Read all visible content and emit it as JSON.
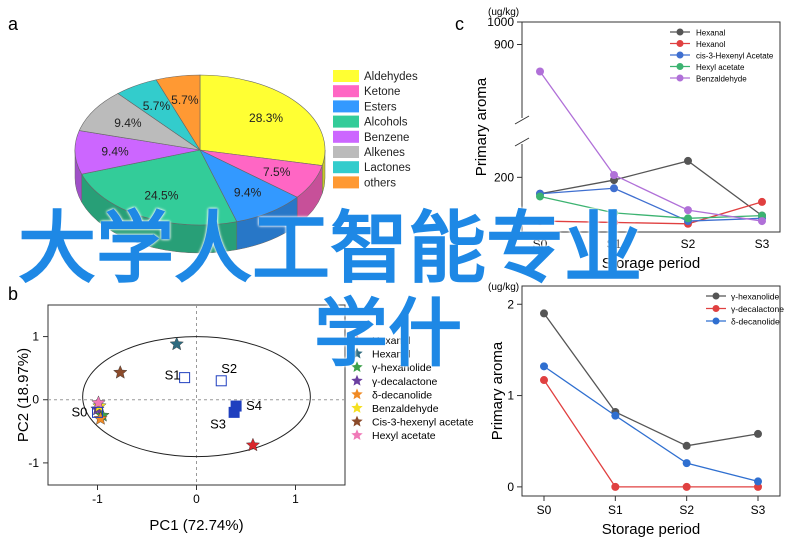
{
  "overlay": {
    "line1": "大学人工智能专业",
    "line2": "学什"
  },
  "chart_data": [
    {
      "panel": "a",
      "type": "pie",
      "title": "",
      "labels": [
        "Aldehydes",
        "Ketone",
        "Esters",
        "Alcohols",
        "Benzene",
        "Alkenes",
        "Lactones",
        "others"
      ],
      "values": [
        28.3,
        7.5,
        9.4,
        24.5,
        9.4,
        9.4,
        5.7,
        5.7
      ],
      "slice_labels": [
        "28.3%",
        "7.5%",
        "9.4%",
        "24.5%",
        "9.4%",
        "9.4%",
        "5.7%",
        "5.7%"
      ],
      "legend": "right",
      "colors": [
        "#ffff33",
        "#ff66c4",
        "#3399ff",
        "#33cc99",
        "#cc66ff",
        "#bbbbbb",
        "#33cccc",
        "#ff9933"
      ]
    },
    {
      "panel": "b",
      "type": "scatter",
      "xlabel": "PC1 (72.74%)",
      "ylabel": "PC2 (18.97%)",
      "xlim": [
        -1.5,
        1.5
      ],
      "ylim": [
        -1.35,
        1.5
      ],
      "xticks": [
        "-1",
        "0",
        "1"
      ],
      "yticks": [
        "1",
        "0",
        "-1"
      ],
      "legend": "right",
      "samples": [
        {
          "label": "S0",
          "x": -1.0,
          "y": -0.2
        },
        {
          "label": "S1",
          "x": -0.12,
          "y": 0.35
        },
        {
          "label": "S2",
          "x": 0.25,
          "y": 0.3
        },
        {
          "label": "S3",
          "x": 0.38,
          "y": -0.2
        },
        {
          "label": "S4",
          "x": 0.4,
          "y": -0.1
        }
      ],
      "loadings": [
        {
          "name": "Hexanal",
          "x": -0.2,
          "y": 0.88,
          "color": "#2e6b7f"
        },
        {
          "name": "γ-hexanolide",
          "x": -0.95,
          "y": -0.25,
          "color": "#3ca04a"
        },
        {
          "name": "γ-decalactone",
          "x": -1.0,
          "y": -0.15,
          "color": "#6b3fa0"
        },
        {
          "name": "δ-decanolide",
          "x": -0.97,
          "y": -0.3,
          "color": "#f08a24"
        },
        {
          "name": "Benzaldehyde",
          "x": -0.98,
          "y": -0.1,
          "color": "#f5e020"
        },
        {
          "name": "Cis-3-hexenyl acetate",
          "x": -0.77,
          "y": 0.43,
          "color": "#8b4a2a"
        },
        {
          "name": "Hexyl acetate",
          "x": -0.99,
          "y": -0.05,
          "color": "#f07ab8"
        },
        {
          "name": "Hexanol",
          "x": 0.57,
          "y": -0.72,
          "color": "#d9262b"
        }
      ],
      "legend_items": [
        "Hexanol",
        "Hexanal",
        "γ-hexanolide",
        "γ-decalactone",
        "δ-decanolide",
        "Benzaldehyde",
        "Cis-3-hexenyl acetate",
        "Hexyl acetate"
      ]
    },
    {
      "panel": "c",
      "type": "line",
      "unit": "(ug/kg)",
      "ylabel": "Primary aroma",
      "xlabel": "Storage period",
      "categories": [
        "S0",
        "S1",
        "S2",
        "S3"
      ],
      "yticks": [
        "1000",
        "900",
        "200"
      ],
      "axis_break": true,
      "legend": "top-right",
      "series": [
        {
          "name": "Hexanal",
          "values": [
            140,
            190,
            260,
            60
          ],
          "color": "#555555"
        },
        {
          "name": "Hexanol",
          "values": [
            40,
            35,
            30,
            110
          ],
          "color": "#e04040"
        },
        {
          "name": "cis-3-Hexenyl Acetate",
          "values": [
            140,
            160,
            40,
            50
          ],
          "color": "#3f6fd0"
        },
        {
          "name": "Hexyl acetate",
          "values": [
            130,
            70,
            50,
            60
          ],
          "color": "#3cb371"
        },
        {
          "name": "Benzaldehyde",
          "values": [
            780,
            320,
            80,
            40
          ],
          "color": "#b070d8"
        }
      ]
    },
    {
      "panel": "d",
      "type": "line",
      "unit": "(ug/kg)",
      "ylabel": "Primary aroma",
      "xlabel": "Storage period",
      "categories": [
        "S0",
        "S1",
        "S2",
        "S3"
      ],
      "ylim": [
        -0.1,
        2.2
      ],
      "yticks": [
        "0",
        "1",
        "2"
      ],
      "legend": "top-right",
      "series": [
        {
          "name": "γ-hexanolide",
          "values": [
            1.9,
            0.82,
            0.45,
            0.58
          ],
          "color": "#555555"
        },
        {
          "name": "γ-decalactone",
          "values": [
            1.17,
            0.0,
            0.0,
            0.0
          ],
          "color": "#e04040"
        },
        {
          "name": "δ-decanolide",
          "values": [
            1.32,
            0.78,
            0.26,
            0.06
          ],
          "color": "#2f6fd0"
        }
      ]
    }
  ]
}
